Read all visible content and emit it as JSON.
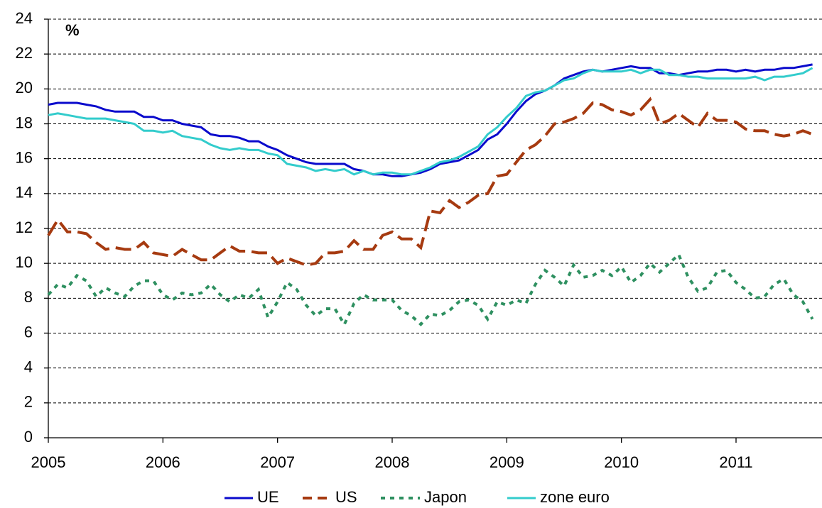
{
  "chart_data": {
    "type": "line",
    "y_unit_label": "%",
    "x": [
      2005,
      2005.083,
      2005.167,
      2005.25,
      2005.333,
      2005.417,
      2005.5,
      2005.583,
      2005.667,
      2005.75,
      2005.833,
      2005.917,
      2006,
      2006.083,
      2006.167,
      2006.25,
      2006.333,
      2006.417,
      2006.5,
      2006.583,
      2006.667,
      2006.75,
      2006.833,
      2006.917,
      2007,
      2007.083,
      2007.167,
      2007.25,
      2007.333,
      2007.417,
      2007.5,
      2007.583,
      2007.667,
      2007.75,
      2007.833,
      2007.917,
      2008,
      2008.083,
      2008.167,
      2008.25,
      2008.333,
      2008.417,
      2008.5,
      2008.583,
      2008.667,
      2008.75,
      2008.833,
      2008.917,
      2009,
      2009.083,
      2009.167,
      2009.25,
      2009.333,
      2009.417,
      2009.5,
      2009.583,
      2009.667,
      2009.75,
      2009.833,
      2009.917,
      2010,
      2010.083,
      2010.167,
      2010.25,
      2010.333,
      2010.417,
      2010.5,
      2010.583,
      2010.667,
      2010.75,
      2010.833,
      2010.917,
      2011,
      2011.083,
      2011.167,
      2011.25,
      2011.333,
      2011.417,
      2011.5,
      2011.583,
      2011.667
    ],
    "series": [
      {
        "name": "UE",
        "color": "#0a0acc",
        "style": "solid",
        "values": [
          19.1,
          19.2,
          19.2,
          19.2,
          19.1,
          19.0,
          18.8,
          18.7,
          18.7,
          18.7,
          18.4,
          18.4,
          18.2,
          18.2,
          18.0,
          17.9,
          17.8,
          17.4,
          17.3,
          17.3,
          17.2,
          17.0,
          17.0,
          16.7,
          16.5,
          16.2,
          16.0,
          15.8,
          15.7,
          15.7,
          15.7,
          15.7,
          15.4,
          15.3,
          15.1,
          15.1,
          15.0,
          15.0,
          15.1,
          15.2,
          15.4,
          15.7,
          15.8,
          15.9,
          16.2,
          16.5,
          17.1,
          17.4,
          18.0,
          18.7,
          19.3,
          19.7,
          19.9,
          20.2,
          20.6,
          20.8,
          21.0,
          21.1,
          21.0,
          21.1,
          21.2,
          21.3,
          21.2,
          21.2,
          20.9,
          20.9,
          20.8,
          20.9,
          21.0,
          21.0,
          21.1,
          21.1,
          21.0,
          21.1,
          21.0,
          21.1,
          21.1,
          21.2,
          21.2,
          21.3,
          21.4
        ]
      },
      {
        "name": "US",
        "color": "#a63a10",
        "style": "dashed",
        "values": [
          11.6,
          12.5,
          11.8,
          11.8,
          11.7,
          11.2,
          10.8,
          10.9,
          10.8,
          10.8,
          11.2,
          10.6,
          10.5,
          10.4,
          10.8,
          10.5,
          10.2,
          10.2,
          10.6,
          11.0,
          10.7,
          10.7,
          10.6,
          10.6,
          10.0,
          10.3,
          10.1,
          9.9,
          10.0,
          10.6,
          10.6,
          10.7,
          11.3,
          10.8,
          10.8,
          11.6,
          11.8,
          11.4,
          11.4,
          10.9,
          13.0,
          12.9,
          13.6,
          13.2,
          13.5,
          13.9,
          14.0,
          15.0,
          15.1,
          15.8,
          16.5,
          16.8,
          17.3,
          18.0,
          18.1,
          18.3,
          18.6,
          19.2,
          19.1,
          18.8,
          18.7,
          18.5,
          18.8,
          19.4,
          18.0,
          18.2,
          18.6,
          18.2,
          17.8,
          18.6,
          18.2,
          18.2,
          18.1,
          17.7,
          17.6,
          17.6,
          17.4,
          17.3,
          17.4,
          17.6,
          17.4
        ]
      },
      {
        "name": "Japon",
        "color": "#2e9060",
        "style": "dotted",
        "values": [
          8.2,
          8.8,
          8.6,
          9.3,
          9.0,
          8.1,
          8.6,
          8.3,
          8.1,
          8.7,
          9.0,
          9.0,
          8.2,
          7.9,
          8.3,
          8.2,
          8.3,
          8.8,
          8.2,
          7.8,
          8.2,
          8.0,
          8.5,
          6.9,
          7.8,
          8.9,
          8.5,
          7.6,
          7.0,
          7.4,
          7.4,
          6.5,
          7.7,
          8.2,
          7.9,
          7.9,
          7.9,
          7.3,
          7.0,
          6.5,
          7.1,
          7.0,
          7.3,
          7.8,
          7.9,
          7.6,
          6.8,
          7.8,
          7.6,
          7.9,
          7.7,
          8.8,
          9.6,
          9.2,
          8.7,
          9.9,
          9.2,
          9.3,
          9.6,
          9.3,
          9.8,
          8.9,
          9.3,
          10.0,
          9.5,
          10.0,
          10.5,
          9.2,
          8.4,
          8.6,
          9.5,
          9.6,
          8.9,
          8.5,
          8.0,
          8.1,
          8.8,
          9.1,
          8.2,
          7.8,
          6.8
        ]
      },
      {
        "name": "zone euro",
        "color": "#33cccc",
        "style": "solid",
        "values": [
          18.5,
          18.6,
          18.5,
          18.4,
          18.3,
          18.3,
          18.3,
          18.2,
          18.1,
          18.0,
          17.6,
          17.6,
          17.5,
          17.6,
          17.3,
          17.2,
          17.1,
          16.8,
          16.6,
          16.5,
          16.6,
          16.5,
          16.5,
          16.3,
          16.2,
          15.7,
          15.6,
          15.5,
          15.3,
          15.4,
          15.3,
          15.4,
          15.1,
          15.3,
          15.1,
          15.2,
          15.2,
          15.1,
          15.1,
          15.3,
          15.5,
          15.8,
          15.9,
          16.1,
          16.4,
          16.7,
          17.4,
          17.8,
          18.4,
          18.9,
          19.6,
          19.8,
          19.9,
          20.2,
          20.5,
          20.6,
          20.9,
          21.1,
          21.0,
          21.0,
          21.0,
          21.1,
          20.9,
          21.1,
          21.1,
          20.8,
          20.8,
          20.7,
          20.7,
          20.6,
          20.6,
          20.6,
          20.6,
          20.6,
          20.7,
          20.5,
          20.7,
          20.7,
          20.8,
          20.9,
          21.2
        ]
      }
    ],
    "xlim": [
      2005,
      2011.75
    ],
    "xticks": [
      2005,
      2006,
      2007,
      2008,
      2009,
      2010,
      2011
    ],
    "ylim": [
      0,
      24
    ],
    "yticks": [
      0,
      2,
      4,
      6,
      8,
      10,
      12,
      14,
      16,
      18,
      20,
      22,
      24
    ],
    "grid": true,
    "legend": "bottom"
  }
}
